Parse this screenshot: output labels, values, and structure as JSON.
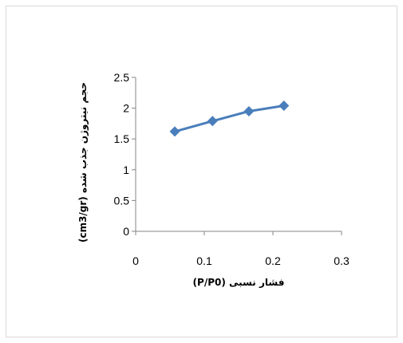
{
  "chart_data": {
    "type": "line",
    "xlabel": "فشار نسبی (P/P0)",
    "ylabel": "حجم نیتروژن جذب شده (cm3/gr)",
    "xlim": [
      0,
      0.3
    ],
    "ylim": [
      0,
      2.5
    ],
    "x_ticks": [
      "0",
      "0.1",
      "0.2",
      "0.3"
    ],
    "y_ticks": [
      "0",
      "0.5",
      "1",
      "1.5",
      "2",
      "2.5"
    ],
    "grid": false,
    "legend": "none",
    "series": [
      {
        "x": [
          0.057,
          0.112,
          0.165,
          0.216
        ],
        "y": [
          1.62,
          1.79,
          1.95,
          2.04
        ],
        "color": "#4a7ebb",
        "marker": "diamond"
      }
    ]
  }
}
